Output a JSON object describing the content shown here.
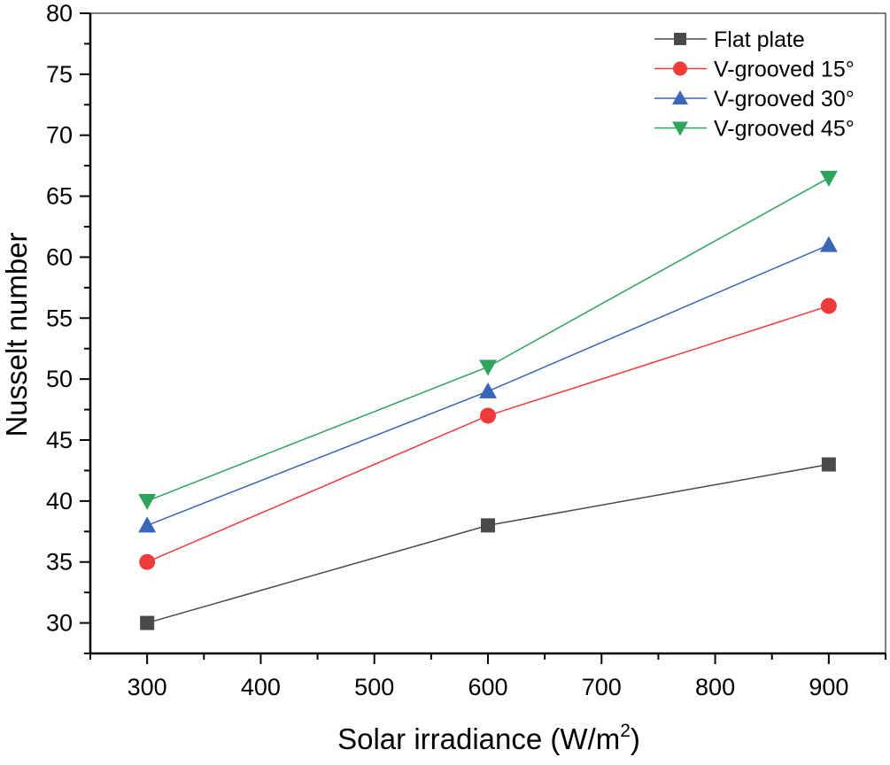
{
  "chart_data": {
    "type": "line",
    "title": "",
    "xlabel": "Solar irradiance (W/m",
    "xlabel_sup": "2",
    "xlabel_end": ")",
    "ylabel": "Nusselt number",
    "xlim": [
      250,
      950
    ],
    "ylim": [
      27.5,
      80
    ],
    "x_ticks": [
      300,
      400,
      500,
      600,
      700,
      800,
      900
    ],
    "y_ticks": [
      30,
      35,
      40,
      45,
      50,
      55,
      60,
      65,
      70,
      75,
      80
    ],
    "grid": false,
    "legend_position": "top-right",
    "x": [
      300,
      600,
      900
    ],
    "series": [
      {
        "name": "Flat plate",
        "values": [
          30,
          38,
          43
        ],
        "color": "#4a4a4a",
        "marker": "square"
      },
      {
        "name": "V-grooved 15°",
        "values": [
          35,
          47,
          56
        ],
        "color": "#ef3b3b",
        "marker": "circle"
      },
      {
        "name": "V-grooved 30°",
        "values": [
          38,
          49,
          61
        ],
        "color": "#3a66b8",
        "marker": "triangle-up"
      },
      {
        "name": "V-grooved 45°",
        "values": [
          40,
          51,
          66.5
        ],
        "color": "#2ea35e",
        "marker": "triangle-down"
      }
    ]
  }
}
